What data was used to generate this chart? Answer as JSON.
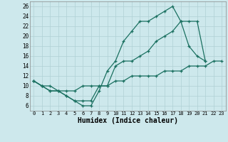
{
  "xlabel": "Humidex (Indice chaleur)",
  "bg_color": "#cde8ec",
  "grid_color": "#b0d0d4",
  "line_color": "#1a7060",
  "xlim": [
    -0.5,
    23.5
  ],
  "ylim": [
    5,
    27
  ],
  "xticks": [
    0,
    1,
    2,
    3,
    4,
    5,
    6,
    7,
    8,
    9,
    10,
    11,
    12,
    13,
    14,
    15,
    16,
    17,
    18,
    19,
    20,
    21,
    22,
    23
  ],
  "yticks": [
    6,
    8,
    10,
    12,
    14,
    16,
    18,
    20,
    22,
    24,
    26
  ],
  "series1_x": [
    0,
    1,
    2,
    3,
    4,
    5,
    6,
    7,
    8,
    9,
    10,
    11,
    12,
    13,
    14,
    15,
    16,
    17,
    18,
    19,
    20,
    21
  ],
  "series1_y": [
    11,
    10,
    9,
    9,
    8,
    7,
    6,
    6,
    9,
    13,
    15,
    19,
    21,
    23,
    23,
    24,
    25,
    26,
    23,
    18,
    16,
    15
  ],
  "series2_x": [
    0,
    1,
    2,
    3,
    4,
    5,
    6,
    7,
    8,
    9,
    10,
    11,
    12,
    13,
    14,
    15,
    16,
    17,
    18,
    19,
    20,
    21
  ],
  "series2_y": [
    11,
    10,
    9,
    9,
    8,
    7,
    7,
    7,
    10,
    10,
    14,
    15,
    15,
    16,
    17,
    19,
    20,
    21,
    23,
    23,
    23,
    15
  ],
  "series3_x": [
    0,
    1,
    2,
    3,
    4,
    5,
    6,
    7,
    8,
    9,
    10,
    11,
    12,
    13,
    14,
    15,
    16,
    17,
    18,
    19,
    20,
    21,
    22,
    23
  ],
  "series3_y": [
    11,
    10,
    10,
    9,
    9,
    9,
    10,
    10,
    10,
    10,
    11,
    11,
    12,
    12,
    12,
    12,
    13,
    13,
    13,
    14,
    14,
    14,
    15,
    15
  ]
}
